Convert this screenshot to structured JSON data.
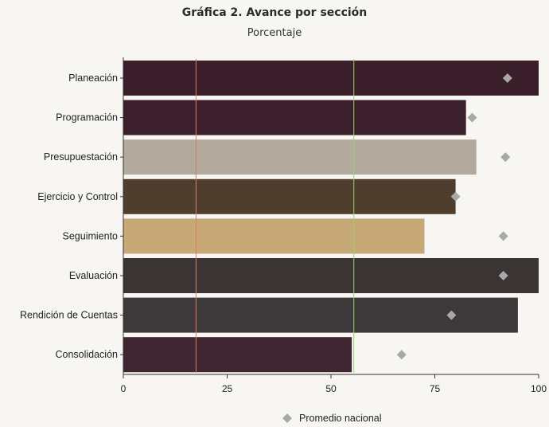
{
  "chart_data": {
    "type": "bar",
    "orientation": "horizontal",
    "title": "Gráfica 2. Avance por sección",
    "subtitle": "Porcentaje",
    "categories": [
      "Planeación",
      "Programación",
      "Presupuestación",
      "Ejercicio y Control",
      "Seguimiento",
      "Evaluación",
      "Rendición de Cuentas",
      "Consolidación"
    ],
    "values": [
      100,
      82.5,
      85,
      80,
      72.5,
      100,
      95,
      55
    ],
    "bar_colors": [
      "#3a1e2a",
      "#3b1f2b",
      "#b1aa9d",
      "#4f3d2d",
      "#c7a877",
      "#3a3534",
      "#3d3839",
      "#3f2630"
    ],
    "series": [
      {
        "name": "Promedio nacional",
        "marker": "diamond",
        "color": "#a8a8a8",
        "values": [
          92.5,
          84,
          92,
          80,
          91.5,
          91.5,
          79,
          67
        ]
      }
    ],
    "reference_lines": [
      {
        "value": 17.5,
        "color": "#e07a6a"
      },
      {
        "value": 55.5,
        "color": "#9cd46c"
      }
    ],
    "xlim": [
      0,
      100
    ],
    "xticks": [
      0,
      25,
      50,
      75,
      100
    ],
    "legend": {
      "position": "bottom-center",
      "entries": [
        "Promedio nacional"
      ]
    },
    "grid": false
  }
}
